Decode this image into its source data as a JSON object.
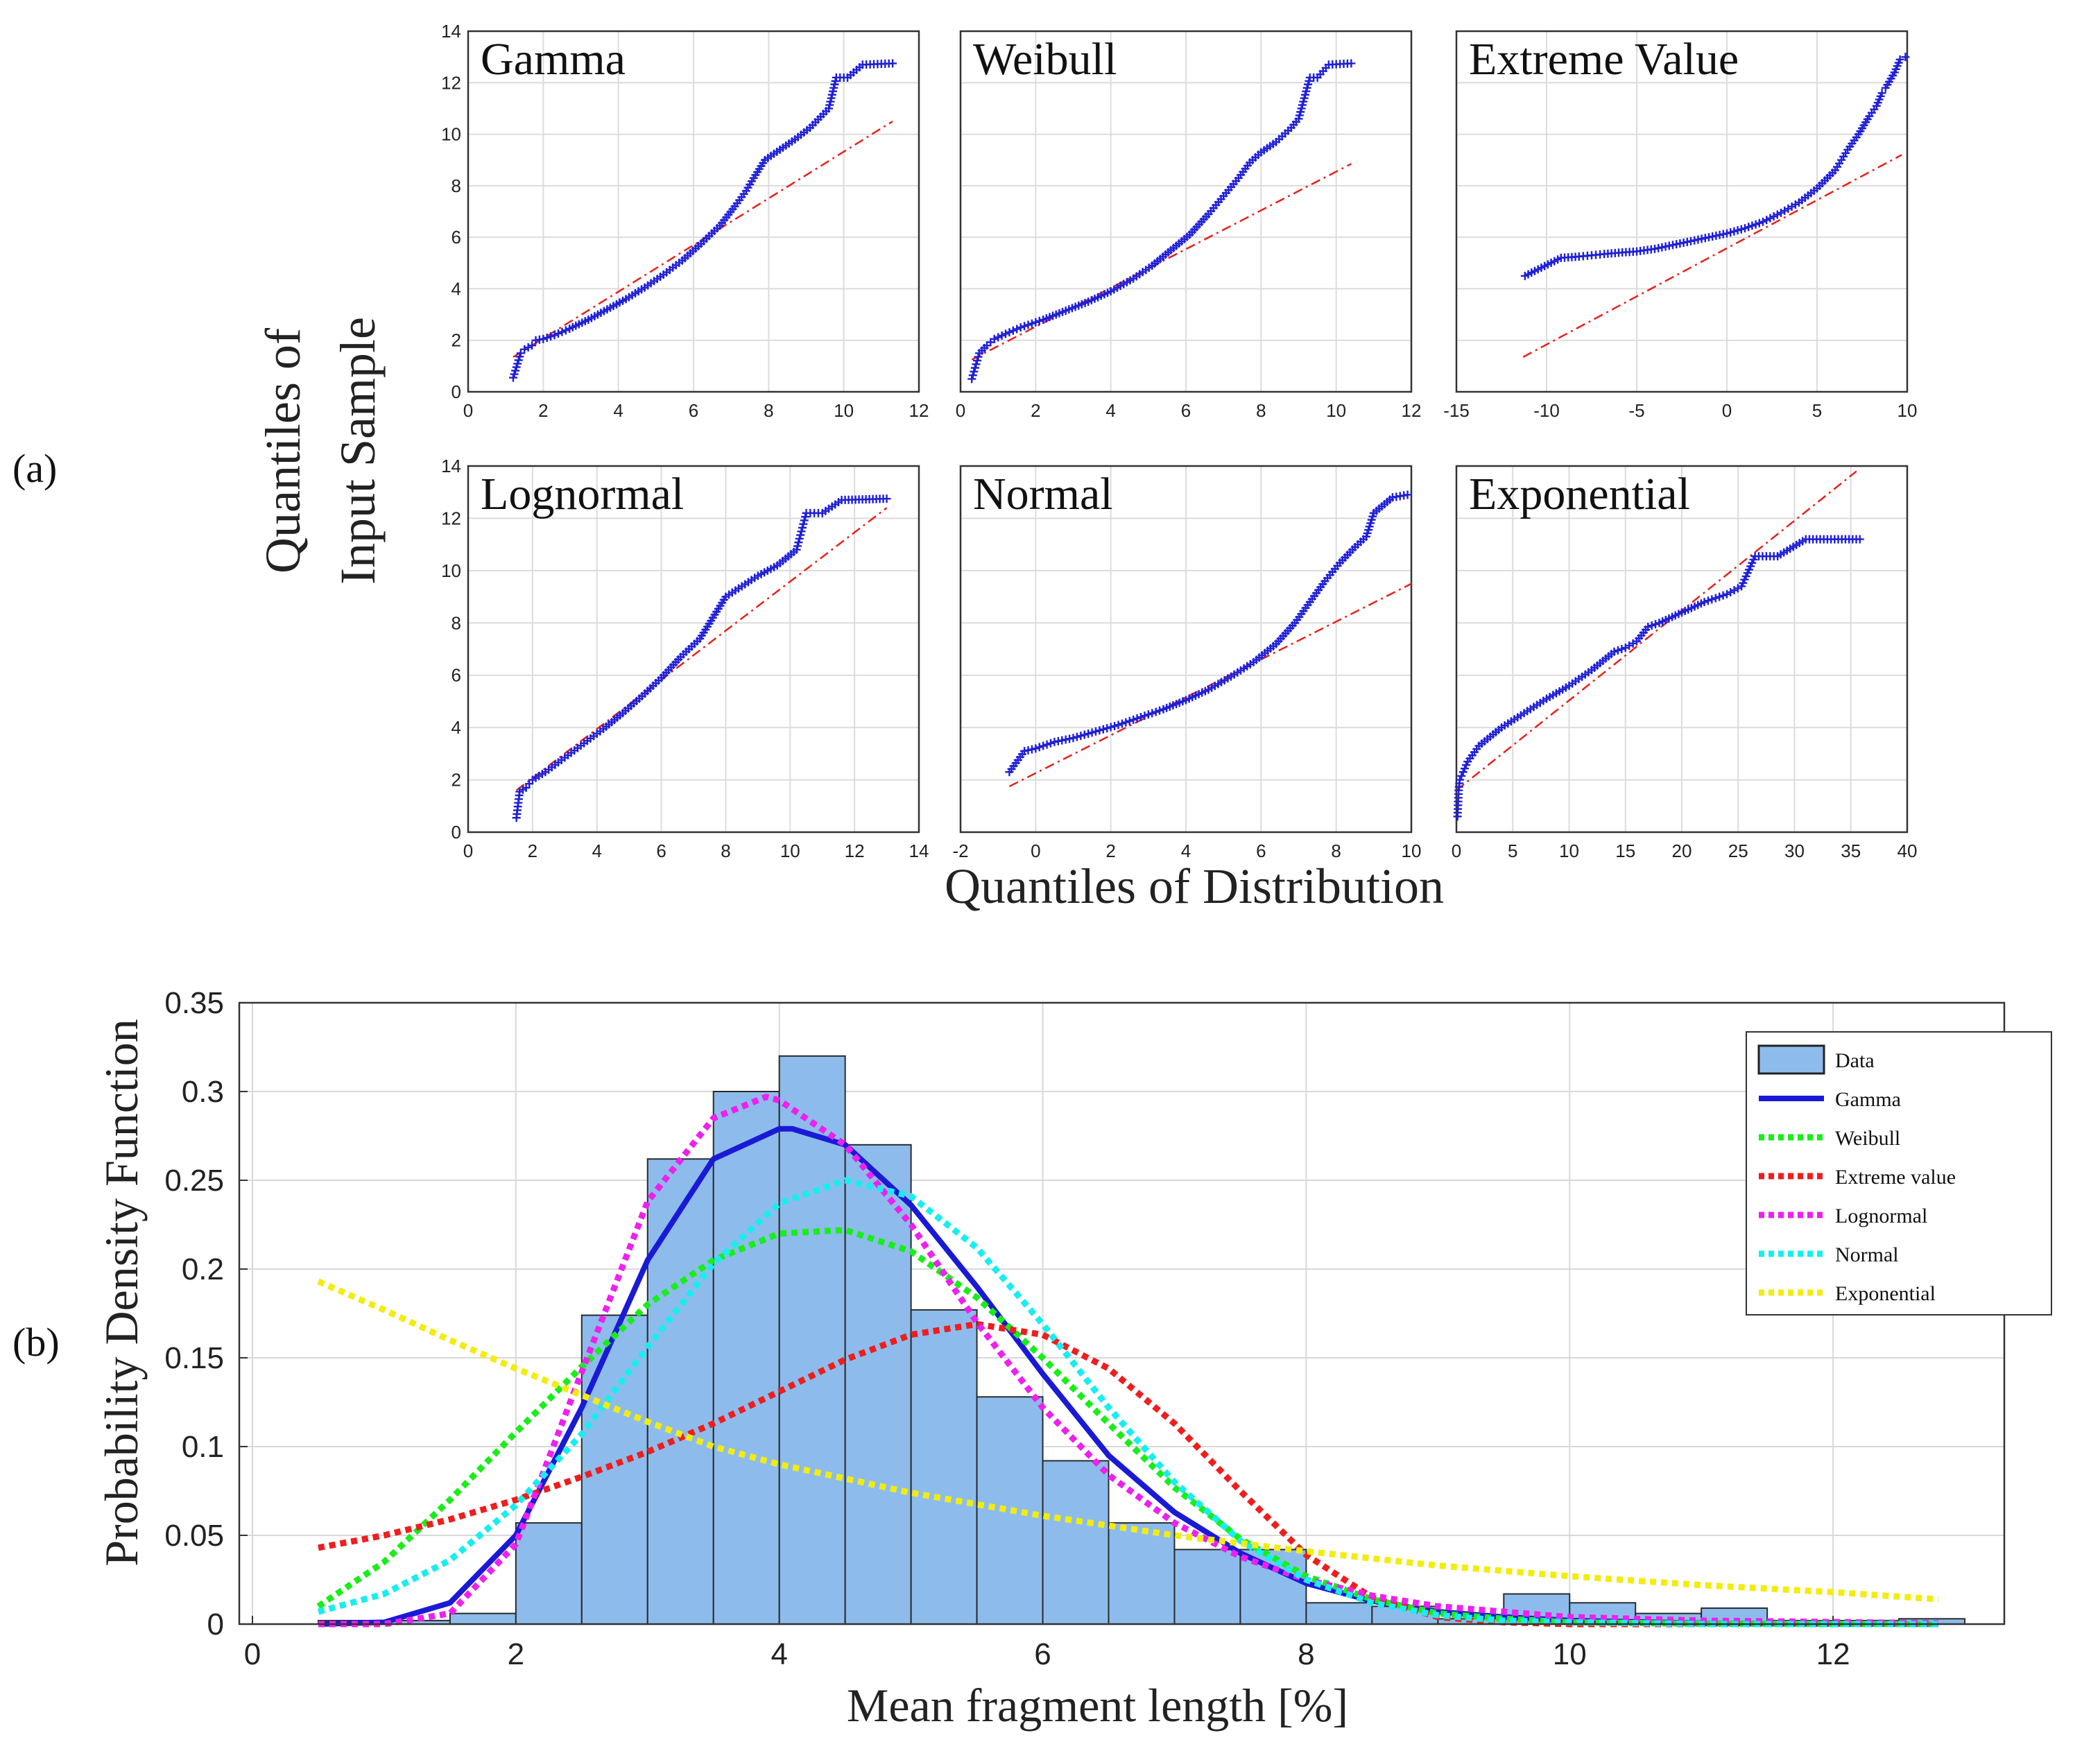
{
  "panel_labels": {
    "a": "(a)",
    "b": "(b)"
  },
  "qq": {
    "ylabel_line1": "Quantiles of",
    "ylabel_line2": "Input Sample",
    "xlabel": "Quantiles of Distribution"
  },
  "colors": {
    "qq_points": "#1f1fd6",
    "qq_ref": "#e8201a",
    "hist_fill": "#8dbcec",
    "hist_edge": "#2b2b2b",
    "gamma": "#1a1ad6",
    "weibull": "#18ee18",
    "extreme": "#ee1e1e",
    "lognormal": "#ee20ee",
    "normal": "#16eef0",
    "exponential": "#f2ec10"
  },
  "chart_data": [
    {
      "type": "scatter",
      "title": "Gamma",
      "xlim": [
        0,
        12
      ],
      "ylim": [
        0,
        14
      ],
      "xticks": [
        "0",
        "2",
        "4",
        "6",
        "8",
        "10",
        "12"
      ],
      "yticks": [
        "0",
        "2",
        "4",
        "6",
        "8",
        "10",
        "12",
        "14"
      ],
      "ref_line": [
        [
          1.2,
          1.35
        ],
        [
          11.3,
          10.5
        ]
      ],
      "points": [
        [
          1.2,
          0.55
        ],
        [
          1.4,
          1.5
        ],
        [
          1.5,
          1.65
        ],
        [
          1.7,
          1.8
        ],
        [
          1.8,
          2.0
        ],
        [
          2.0,
          2.05
        ],
        [
          2.3,
          2.2
        ],
        [
          2.7,
          2.45
        ],
        [
          3.2,
          2.8
        ],
        [
          3.7,
          3.2
        ],
        [
          4.2,
          3.6
        ],
        [
          4.7,
          4.05
        ],
        [
          5.2,
          4.55
        ],
        [
          5.7,
          5.1
        ],
        [
          6.2,
          5.75
        ],
        [
          6.7,
          6.45
        ],
        [
          7.1,
          7.2
        ],
        [
          7.4,
          7.8
        ],
        [
          7.6,
          8.3
        ],
        [
          7.9,
          9.0
        ],
        [
          8.3,
          9.4
        ],
        [
          8.7,
          9.8
        ],
        [
          9.1,
          10.25
        ],
        [
          9.6,
          11.0
        ],
        [
          9.8,
          12.2
        ],
        [
          10.1,
          12.2
        ],
        [
          10.5,
          12.7
        ],
        [
          11.3,
          12.75
        ]
      ]
    },
    {
      "type": "scatter",
      "title": "Weibull",
      "xlim": [
        0,
        12
      ],
      "ylim": [
        0,
        14
      ],
      "xticks": [
        "0",
        "2",
        "4",
        "6",
        "8",
        "10",
        "12"
      ],
      "yticks": [],
      "ref_line": [
        [
          0.3,
          1.25
        ],
        [
          10.4,
          8.85
        ]
      ],
      "points": [
        [
          0.3,
          0.5
        ],
        [
          0.5,
          1.5
        ],
        [
          0.7,
          1.8
        ],
        [
          0.9,
          2.05
        ],
        [
          1.2,
          2.25
        ],
        [
          1.6,
          2.5
        ],
        [
          2.2,
          2.8
        ],
        [
          2.8,
          3.15
        ],
        [
          3.4,
          3.5
        ],
        [
          4.0,
          3.9
        ],
        [
          4.6,
          4.4
        ],
        [
          5.1,
          4.9
        ],
        [
          5.6,
          5.5
        ],
        [
          6.1,
          6.1
        ],
        [
          6.6,
          6.9
        ],
        [
          7.0,
          7.6
        ],
        [
          7.4,
          8.3
        ],
        [
          7.7,
          8.9
        ],
        [
          8.0,
          9.3
        ],
        [
          8.4,
          9.7
        ],
        [
          8.8,
          10.25
        ],
        [
          9.0,
          10.6
        ],
        [
          9.3,
          12.2
        ],
        [
          9.5,
          12.2
        ],
        [
          9.8,
          12.7
        ],
        [
          10.4,
          12.75
        ]
      ]
    },
    {
      "type": "scatter",
      "title": "Extreme Value",
      "xlim": [
        -15,
        10
      ],
      "ylim": [
        0,
        14
      ],
      "xticks": [
        "-15",
        "-10",
        "-5",
        "0",
        "5",
        "10"
      ],
      "yticks": [],
      "ref_line": [
        [
          -11.3,
          1.35
        ],
        [
          9.7,
          9.2
        ]
      ],
      "points": [
        [
          -11.2,
          4.5
        ],
        [
          -9.2,
          5.2
        ],
        [
          -8.2,
          5.25
        ],
        [
          -7.5,
          5.3
        ],
        [
          -6.8,
          5.35
        ],
        [
          -6.0,
          5.4
        ],
        [
          -5.0,
          5.45
        ],
        [
          -4.0,
          5.55
        ],
        [
          -3.0,
          5.7
        ],
        [
          -2.0,
          5.85
        ],
        [
          -1.0,
          6.0
        ],
        [
          0.0,
          6.15
        ],
        [
          1.0,
          6.35
        ],
        [
          2.0,
          6.6
        ],
        [
          3.0,
          6.95
        ],
        [
          4.0,
          7.35
        ],
        [
          5.0,
          7.9
        ],
        [
          6.0,
          8.6
        ],
        [
          6.7,
          9.4
        ],
        [
          7.3,
          10.0
        ],
        [
          7.9,
          10.7
        ],
        [
          8.3,
          11.1
        ],
        [
          8.6,
          11.6
        ],
        [
          8.8,
          11.8
        ],
        [
          9.3,
          12.4
        ],
        [
          9.6,
          12.9
        ],
        [
          9.9,
          13.0
        ]
      ]
    },
    {
      "type": "scatter",
      "title": "Lognormal",
      "xlim": [
        0,
        14
      ],
      "ylim": [
        0,
        14
      ],
      "xticks": [
        "0",
        "2",
        "4",
        "6",
        "8",
        "10",
        "12",
        "14"
      ],
      "yticks": [
        "0",
        "2",
        "4",
        "6",
        "8",
        "10",
        "12",
        "14"
      ],
      "ref_line": [
        [
          1.5,
          1.6
        ],
        [
          13.0,
          12.4
        ]
      ],
      "points": [
        [
          1.5,
          0.55
        ],
        [
          1.6,
          1.55
        ],
        [
          1.8,
          1.7
        ],
        [
          2.0,
          2.0
        ],
        [
          2.4,
          2.3
        ],
        [
          3.0,
          2.85
        ],
        [
          3.6,
          3.4
        ],
        [
          4.2,
          3.95
        ],
        [
          4.8,
          4.55
        ],
        [
          5.4,
          5.2
        ],
        [
          6.0,
          5.9
        ],
        [
          6.6,
          6.7
        ],
        [
          7.2,
          7.4
        ],
        [
          7.6,
          8.2
        ],
        [
          8.0,
          9.0
        ],
        [
          8.5,
          9.4
        ],
        [
          9.0,
          9.8
        ],
        [
          9.6,
          10.2
        ],
        [
          10.2,
          10.8
        ],
        [
          10.5,
          12.2
        ],
        [
          11.0,
          12.2
        ],
        [
          11.6,
          12.7
        ],
        [
          13.0,
          12.75
        ]
      ]
    },
    {
      "type": "scatter",
      "title": "Normal",
      "xlim": [
        -2,
        10
      ],
      "ylim": [
        0,
        14
      ],
      "xticks": [
        "-2",
        "0",
        "2",
        "4",
        "6",
        "8",
        "10"
      ],
      "yticks": [],
      "ref_line": [
        [
          -0.7,
          1.75
        ],
        [
          10.0,
          9.5
        ]
      ],
      "points": [
        [
          -0.7,
          2.3
        ],
        [
          -0.3,
          3.1
        ],
        [
          0.0,
          3.2
        ],
        [
          0.5,
          3.45
        ],
        [
          1.0,
          3.6
        ],
        [
          1.6,
          3.85
        ],
        [
          2.2,
          4.1
        ],
        [
          2.8,
          4.4
        ],
        [
          3.4,
          4.7
        ],
        [
          4.0,
          5.05
        ],
        [
          4.6,
          5.45
        ],
        [
          5.2,
          5.95
        ],
        [
          5.8,
          6.5
        ],
        [
          6.4,
          7.2
        ],
        [
          6.9,
          8.0
        ],
        [
          7.3,
          8.8
        ],
        [
          7.7,
          9.6
        ],
        [
          8.1,
          10.3
        ],
        [
          8.5,
          10.9
        ],
        [
          8.8,
          11.3
        ],
        [
          9.0,
          12.2
        ],
        [
          9.5,
          12.8
        ],
        [
          9.9,
          12.9
        ]
      ]
    },
    {
      "type": "scatter",
      "title": "Exponential",
      "xlim": [
        0,
        40
      ],
      "ylim": [
        0,
        14
      ],
      "xticks": [
        "0",
        "5",
        "10",
        "15",
        "20",
        "25",
        "30",
        "35",
        "40"
      ],
      "yticks": [],
      "ref_line": [
        [
          0.0,
          1.6
        ],
        [
          35.5,
          13.8
        ]
      ],
      "points": [
        [
          0.1,
          0.6
        ],
        [
          0.2,
          1.6
        ],
        [
          0.3,
          2.0
        ],
        [
          0.6,
          2.3
        ],
        [
          1.0,
          2.7
        ],
        [
          2.0,
          3.3
        ],
        [
          4.0,
          4.0
        ],
        [
          6.0,
          4.55
        ],
        [
          8.0,
          5.1
        ],
        [
          10.0,
          5.6
        ],
        [
          12.0,
          6.2
        ],
        [
          14.0,
          6.9
        ],
        [
          15.0,
          7.05
        ],
        [
          16.0,
          7.3
        ],
        [
          17.0,
          7.85
        ],
        [
          18.0,
          8.0
        ],
        [
          20.0,
          8.4
        ],
        [
          22.0,
          8.8
        ],
        [
          24.0,
          9.1
        ],
        [
          25.3,
          9.4
        ],
        [
          26.5,
          10.55
        ],
        [
          28.5,
          10.55
        ],
        [
          31.0,
          11.2
        ],
        [
          35.8,
          11.2
        ]
      ]
    },
    {
      "type": "bar",
      "xlabel": "Mean fragment length [%]",
      "ylabel": "Probability Density Function",
      "xlim": [
        -0.1,
        13.3
      ],
      "ylim": [
        0,
        0.35
      ],
      "xticks": [
        "0",
        "2",
        "4",
        "6",
        "8",
        "10",
        "12"
      ],
      "yticks": [
        "0",
        "0.05",
        "0.1",
        "0.15",
        "0.2",
        "0.25",
        "0.3",
        "0.35"
      ],
      "bin_edges": [
        0.5,
        1.0,
        1.5,
        2.0,
        2.5,
        3.0,
        3.5,
        4.0,
        4.5,
        5.0,
        5.5,
        6.0,
        6.5,
        7.0,
        7.5,
        8.0,
        8.5,
        9.0,
        9.5,
        10.0,
        10.5,
        11.0,
        11.5,
        12.0,
        12.5,
        13.0
      ],
      "values": [
        0.002,
        0.002,
        0.006,
        0.057,
        0.174,
        0.262,
        0.3,
        0.32,
        0.27,
        0.177,
        0.128,
        0.092,
        0.057,
        0.042,
        0.042,
        0.012,
        0.01,
        0.003,
        0.017,
        0.012,
        0.006,
        0.009,
        0.002,
        0.002,
        0.003
      ],
      "curves": [
        {
          "name": "Gamma",
          "color_key": "gamma",
          "style": "solid",
          "x": [
            0.5,
            1.0,
            1.5,
            2.0,
            2.5,
            3.0,
            3.5,
            4.0,
            4.1,
            4.5,
            5.0,
            5.5,
            6.0,
            6.5,
            7.0,
            7.5,
            8.0,
            8.5,
            9.0,
            9.5,
            10.0,
            11.0,
            12.0,
            12.8
          ],
          "y": [
            0.0,
            0.001,
            0.012,
            0.05,
            0.122,
            0.205,
            0.262,
            0.279,
            0.279,
            0.27,
            0.236,
            0.19,
            0.141,
            0.095,
            0.063,
            0.04,
            0.023,
            0.013,
            0.007,
            0.004,
            0.002,
            0.0005,
            0.0001,
            0.0
          ]
        },
        {
          "name": "Weibull",
          "color_key": "weibull",
          "style": "dotted",
          "x": [
            0.5,
            1.0,
            1.5,
            2.0,
            2.5,
            3.0,
            3.5,
            4.0,
            4.5,
            5.0,
            5.5,
            6.0,
            6.5,
            7.0,
            7.5,
            8.0,
            8.5,
            9.0,
            9.5,
            10.0,
            11.0,
            12.8
          ],
          "y": [
            0.01,
            0.035,
            0.07,
            0.108,
            0.145,
            0.18,
            0.205,
            0.22,
            0.222,
            0.21,
            0.184,
            0.15,
            0.113,
            0.077,
            0.048,
            0.027,
            0.014,
            0.006,
            0.003,
            0.001,
            0.0002,
            0.0
          ]
        },
        {
          "name": "Extreme value",
          "color_key": "extreme",
          "style": "dotted",
          "x": [
            0.5,
            1.0,
            1.5,
            2.0,
            2.5,
            3.0,
            3.5,
            4.0,
            4.5,
            5.0,
            5.5,
            6.0,
            6.5,
            7.0,
            7.5,
            8.0,
            8.5,
            9.0,
            9.5,
            10.0,
            11.0,
            12.8
          ],
          "y": [
            0.043,
            0.05,
            0.059,
            0.07,
            0.083,
            0.097,
            0.113,
            0.131,
            0.149,
            0.163,
            0.169,
            0.163,
            0.144,
            0.113,
            0.075,
            0.039,
            0.015,
            0.004,
            0.001,
            0.0,
            0.0,
            0.0
          ]
        },
        {
          "name": "Lognormal",
          "color_key": "lognormal",
          "style": "dotted",
          "x": [
            0.5,
            1.0,
            1.5,
            2.0,
            2.5,
            3.0,
            3.5,
            3.9,
            4.0,
            4.5,
            5.0,
            5.5,
            6.0,
            6.5,
            7.0,
            7.5,
            8.0,
            8.5,
            9.0,
            10.0,
            11.0,
            12.8
          ],
          "y": [
            0.0,
            0.0,
            0.006,
            0.045,
            0.142,
            0.238,
            0.285,
            0.297,
            0.295,
            0.27,
            0.225,
            0.17,
            0.122,
            0.084,
            0.057,
            0.038,
            0.025,
            0.016,
            0.01,
            0.004,
            0.002,
            0.0005
          ]
        },
        {
          "name": "Normal",
          "color_key": "normal",
          "style": "dotted",
          "x": [
            0.5,
            1.0,
            1.5,
            2.0,
            2.5,
            3.0,
            3.5,
            4.0,
            4.5,
            5.0,
            5.5,
            6.0,
            6.5,
            7.0,
            7.5,
            8.0,
            8.5,
            9.0,
            9.5,
            10.0,
            11.0,
            12.8
          ],
          "y": [
            0.007,
            0.017,
            0.036,
            0.067,
            0.107,
            0.156,
            0.203,
            0.237,
            0.25,
            0.241,
            0.212,
            0.169,
            0.122,
            0.08,
            0.047,
            0.025,
            0.012,
            0.005,
            0.002,
            0.001,
            0.0,
            0.0
          ]
        },
        {
          "name": "Exponential",
          "color_key": "exponential",
          "style": "dotted",
          "x": [
            0.5,
            1.0,
            1.5,
            2.0,
            2.5,
            3.0,
            3.5,
            4.0,
            5.0,
            6.0,
            7.0,
            8.0,
            9.0,
            10.0,
            11.0,
            12.0,
            12.8
          ],
          "y": [
            0.193,
            0.177,
            0.16,
            0.144,
            0.129,
            0.114,
            0.1,
            0.09,
            0.074,
            0.061,
            0.05,
            0.041,
            0.033,
            0.027,
            0.022,
            0.018,
            0.014
          ]
        }
      ],
      "legend": {
        "position": "top-right",
        "entries": [
          {
            "label": "Data",
            "kind": "patch",
            "color_key": "hist_fill"
          },
          {
            "label": "Gamma",
            "kind": "solid",
            "color_key": "gamma"
          },
          {
            "label": "Weibull",
            "kind": "dotted",
            "color_key": "weibull"
          },
          {
            "label": "Extreme value",
            "kind": "dotted",
            "color_key": "extreme"
          },
          {
            "label": "Lognormal",
            "kind": "dotted",
            "color_key": "lognormal"
          },
          {
            "label": "Normal",
            "kind": "dotted",
            "color_key": "normal"
          },
          {
            "label": "Exponential",
            "kind": "dotted",
            "color_key": "exponential"
          }
        ]
      }
    }
  ]
}
